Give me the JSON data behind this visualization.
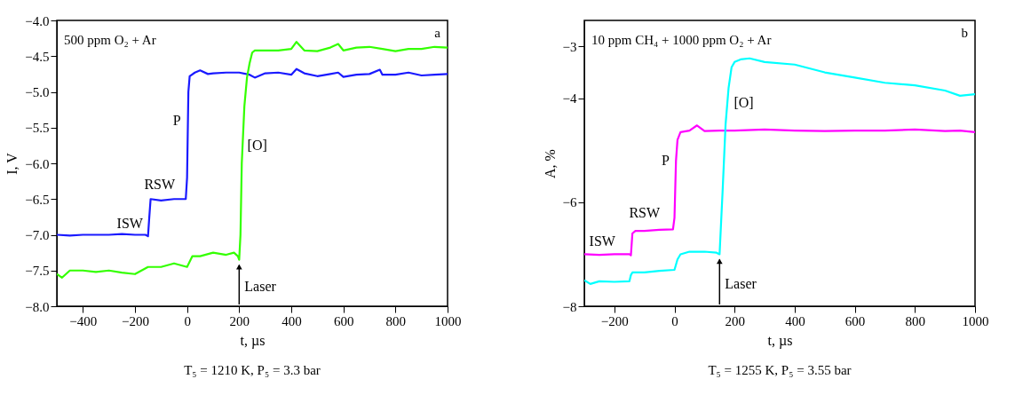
{
  "chart_data": [
    {
      "type": "line",
      "xlabel": "t, µs",
      "ylabel": "I, V",
      "xlim": [
        -500,
        1000
      ],
      "ylim": [
        -8,
        -4
      ],
      "xticks": [
        {
          "value": -400,
          "label": "−400"
        },
        {
          "value": -200,
          "label": "−200"
        },
        0,
        200,
        400,
        600,
        800,
        {
          "value": 1000,
          "label": "1000"
        }
      ],
      "yticks": [
        {
          "value": -8,
          "label": "−8.0"
        },
        {
          "value": -7.5,
          "label": "−7.5"
        },
        {
          "value": -7,
          "label": "−7.0"
        },
        {
          "value": -6.5,
          "label": "−6.5"
        },
        {
          "value": -6,
          "label": "−6.0"
        },
        {
          "value": -5.5,
          "label": "−5.5"
        },
        {
          "value": -5,
          "label": "−5.0"
        },
        {
          "value": -4.5,
          "label": "−4.5"
        },
        {
          "value": -4,
          "label": "−4.0"
        }
      ],
      "grid": false,
      "legend": false,
      "series": [
        {
          "color": "#1a1aff",
          "x": [
            -500,
            -450,
            -400,
            -350,
            -300,
            -250,
            -200,
            -160,
            -150,
            -145,
            -140,
            -100,
            -50,
            -5,
            0,
            5,
            10,
            30,
            50,
            80,
            100,
            150,
            200,
            240,
            260,
            300,
            350,
            400,
            420,
            450,
            500,
            550,
            580,
            600,
            650,
            700,
            740,
            750,
            800,
            850,
            900,
            950,
            1000
          ],
          "values": [
            -7.0,
            -7.01,
            -7.0,
            -7.0,
            -7.0,
            -6.99,
            -7.0,
            -7.0,
            -7.02,
            -6.75,
            -6.5,
            -6.52,
            -6.5,
            -6.5,
            -6.2,
            -5.0,
            -4.78,
            -4.73,
            -4.7,
            -4.75,
            -4.74,
            -4.73,
            -4.73,
            -4.76,
            -4.8,
            -4.74,
            -4.73,
            -4.76,
            -4.68,
            -4.74,
            -4.78,
            -4.75,
            -4.73,
            -4.79,
            -4.76,
            -4.75,
            -4.69,
            -4.76,
            -4.76,
            -4.73,
            -4.77,
            -4.76,
            -4.75
          ]
        },
        {
          "color": "#33ff00",
          "x": [
            -500,
            -480,
            -450,
            -400,
            -350,
            -300,
            -250,
            -200,
            -150,
            -100,
            -50,
            0,
            20,
            50,
            100,
            150,
            180,
            195,
            200,
            205,
            210,
            220,
            230,
            240,
            250,
            260,
            280,
            300,
            350,
            400,
            420,
            450,
            500,
            550,
            580,
            600,
            650,
            700,
            750,
            800,
            850,
            900,
            950,
            1000
          ],
          "values": [
            -7.55,
            -7.6,
            -7.5,
            -7.5,
            -7.52,
            -7.5,
            -7.53,
            -7.55,
            -7.45,
            -7.45,
            -7.4,
            -7.45,
            -7.3,
            -7.3,
            -7.25,
            -7.28,
            -7.25,
            -7.3,
            -7.35,
            -7.0,
            -6.0,
            -5.2,
            -4.8,
            -4.6,
            -4.45,
            -4.42,
            -4.42,
            -4.42,
            -4.42,
            -4.4,
            -4.3,
            -4.42,
            -4.43,
            -4.38,
            -4.33,
            -4.42,
            -4.38,
            -4.37,
            -4.4,
            -4.43,
            -4.4,
            -4.4,
            -4.37,
            -4.38
          ]
        }
      ],
      "annotations": [
        "500 ppm O₂ + Ar",
        "a",
        "T₅ = 1210 K, P₅ = 3.3 bar",
        "ISW",
        "RSW",
        "P",
        "[O]",
        {
          "text": "Laser",
          "x": 200,
          "y": -7.35
        }
      ]
    },
    {
      "type": "line",
      "xlabel": "t, µs",
      "ylabel": "A, %",
      "xlim": [
        -300,
        1000
      ],
      "ylim": [
        -8,
        -2.5
      ],
      "xticks": [
        {
          "value": -200,
          "label": "−200"
        },
        0,
        200,
        400,
        600,
        800,
        {
          "value": 1000,
          "label": "1000"
        }
      ],
      "yticks": [
        {
          "value": -8,
          "label": "−8"
        },
        {
          "value": -6,
          "label": "−6"
        },
        {
          "value": -4,
          "label": "−4"
        },
        {
          "value": -3,
          "label": "−3"
        }
      ],
      "grid": false,
      "legend": false,
      "series": [
        {
          "color": "#ff00ff",
          "x": [
            -300,
            -250,
            -200,
            -150,
            -145,
            -140,
            -130,
            -100,
            -50,
            -5,
            0,
            5,
            10,
            20,
            50,
            75,
            100,
            150,
            200,
            300,
            400,
            500,
            600,
            700,
            800,
            900,
            950,
            1000
          ],
          "values": [
            -7.0,
            -7.01,
            -7.0,
            -7.0,
            -7.02,
            -6.6,
            -6.55,
            -6.55,
            -6.53,
            -6.52,
            -6.3,
            -5.2,
            -4.8,
            -4.65,
            -4.62,
            -4.52,
            -4.63,
            -4.62,
            -4.62,
            -4.6,
            -4.62,
            -4.63,
            -4.62,
            -4.62,
            -4.6,
            -4.63,
            -4.62,
            -4.65
          ]
        },
        {
          "color": "#00ffff",
          "x": [
            -300,
            -280,
            -250,
            -200,
            -150,
            -145,
            -140,
            -100,
            -50,
            0,
            10,
            20,
            50,
            100,
            140,
            150,
            160,
            170,
            180,
            190,
            200,
            220,
            250,
            300,
            400,
            500,
            600,
            700,
            800,
            900,
            950,
            1000
          ],
          "values": [
            -7.5,
            -7.57,
            -7.52,
            -7.53,
            -7.52,
            -7.4,
            -7.35,
            -7.35,
            -7.32,
            -7.3,
            -7.1,
            -7.0,
            -6.95,
            -6.95,
            -6.97,
            -7.0,
            -5.8,
            -4.5,
            -3.8,
            -3.4,
            -3.3,
            -3.25,
            -3.23,
            -3.3,
            -3.35,
            -3.5,
            -3.6,
            -3.7,
            -3.75,
            -3.85,
            -3.95,
            -3.92
          ]
        }
      ],
      "annotations": [
        "10 ppm CH₄ + 1000 ppm O₂ + Ar",
        "b",
        "T₅ = 1255 K, P₅ = 3.55 bar",
        "ISW",
        "RSW",
        "P",
        "[O]",
        {
          "text": "Laser",
          "x": 150,
          "y": -7.0
        }
      ]
    }
  ]
}
